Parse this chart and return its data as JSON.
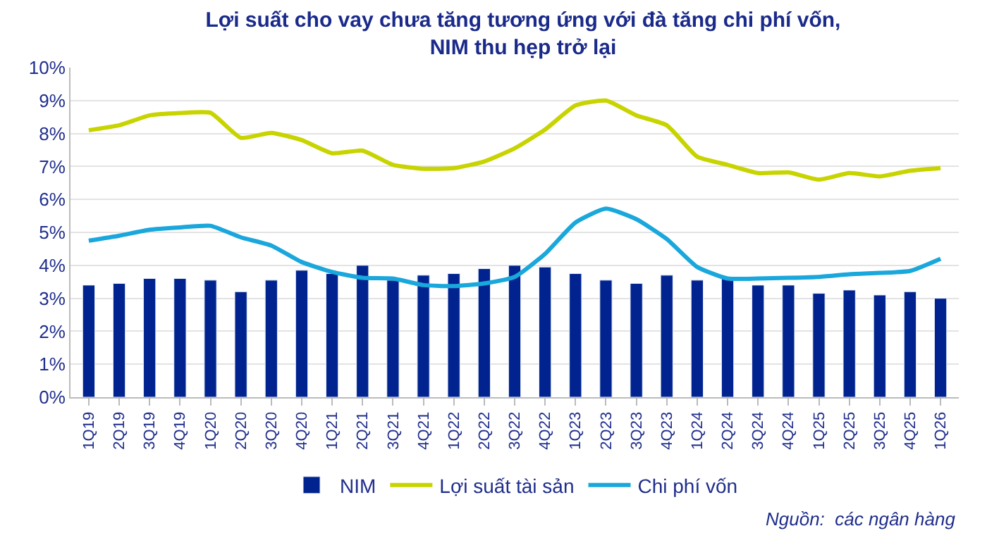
{
  "chart_data": {
    "type": "bar",
    "title": "Lợi suất cho vay chưa tăng tương ứng với đà tăng chi phí vốn,\nNIM thu hẹp trở lại",
    "categories": [
      "1Q19",
      "2Q19",
      "3Q19",
      "4Q19",
      "1Q20",
      "2Q20",
      "3Q20",
      "4Q20",
      "1Q21",
      "2Q21",
      "3Q21",
      "4Q21",
      "1Q22",
      "2Q22",
      "3Q22",
      "4Q22",
      "1Q23",
      "2Q23",
      "3Q23",
      "4Q23",
      "1Q24",
      "2Q24",
      "3Q24",
      "4Q24",
      "1Q25",
      "2Q25",
      "3Q25",
      "4Q25",
      "1Q26"
    ],
    "series": [
      {
        "name": "NIM",
        "color": "#00238f",
        "values": [
          3.4,
          3.45,
          3.6,
          3.6,
          3.55,
          3.2,
          3.55,
          3.85,
          3.75,
          4.0,
          3.55,
          3.7,
          3.75,
          3.9,
          4.0,
          3.95,
          3.75,
          3.55,
          3.45,
          3.7,
          3.55,
          3.65,
          3.4,
          3.4,
          3.15,
          3.25,
          3.1,
          3.2,
          3.0
        ]
      },
      {
        "name": "Lợi suất tài sản",
        "type": "line",
        "color": "#c8d400",
        "values": [
          8.1,
          8.25,
          8.55,
          8.62,
          8.63,
          7.87,
          8.02,
          7.8,
          7.4,
          7.48,
          7.05,
          6.93,
          6.95,
          7.15,
          7.55,
          8.12,
          8.85,
          9.0,
          8.55,
          8.25,
          7.3,
          7.05,
          6.8,
          6.82,
          6.6,
          6.8,
          6.7,
          6.87,
          6.95
        ]
      },
      {
        "name": "Chi phí vốn",
        "type": "line",
        "color": "#1aa7dc",
        "values": [
          4.75,
          4.9,
          5.08,
          5.15,
          5.2,
          4.85,
          4.6,
          4.1,
          3.8,
          3.62,
          3.6,
          3.4,
          3.37,
          3.45,
          3.65,
          4.35,
          5.3,
          5.72,
          5.4,
          4.8,
          3.95,
          3.6,
          3.6,
          3.62,
          3.65,
          3.73,
          3.77,
          3.83,
          4.2
        ]
      }
    ],
    "ylim": [
      0,
      10
    ],
    "yticks": [
      {
        "value": 0,
        "label": "0%"
      },
      {
        "value": 1,
        "label": "1%"
      },
      {
        "value": 2,
        "label": "2%"
      },
      {
        "value": 3,
        "label": "3%"
      },
      {
        "value": 4,
        "label": "4%"
      },
      {
        "value": 5,
        "label": "5%"
      },
      {
        "value": 6,
        "label": "6%"
      },
      {
        "value": 7,
        "label": "7%"
      },
      {
        "value": 8,
        "label": "8%"
      },
      {
        "value": 9,
        "label": "9%"
      },
      {
        "value": 10,
        "label": "10%"
      }
    ],
    "grid": "y",
    "legend": "bottom",
    "marker": "none",
    "line_style": "solid",
    "annotations": [
      "Nguồn:  các ngân hàng"
    ]
  }
}
